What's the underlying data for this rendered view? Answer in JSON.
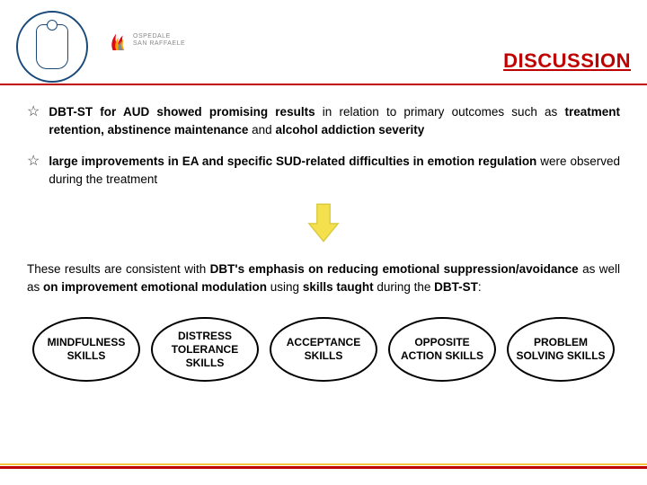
{
  "header": {
    "logo2_line1": "OSPEDALE",
    "logo2_line2": "SAN RAFFAELE",
    "title": "DISCUSSION",
    "flame_colors": [
      "#e30613",
      "#f7a600",
      "#878787"
    ]
  },
  "bullets": [
    {
      "html": "<b>DBT-ST for AUD showed promising results</b> in relation to primary outcomes such as <b>treatment retention, abstinence maintenance</b> and <b>alcohol addiction severity</b>"
    },
    {
      "html": "<b>large improvements in EA and specific SUD-related difficulties in emotion regulation</b> were observed during the treatment"
    }
  ],
  "arrow": {
    "fill": "#f4e04d",
    "stroke": "#d8c93a"
  },
  "paragraph_html": "These results are consistent with <b>DBT's emphasis on reducing emotional suppression/avoidance</b> as well as <b>on improvement emotional modulation</b> using <b>skills taught</b> during the <b>DBT-ST</b>:",
  "skills": [
    "MINDFULNESS SKILLS",
    "DISTRESS TOLERANCE SKILLS",
    "ACCEPTANCE SKILLS",
    "OPPOSITE ACTION SKILLS",
    "PROBLEM SOLVING SKILLS"
  ]
}
